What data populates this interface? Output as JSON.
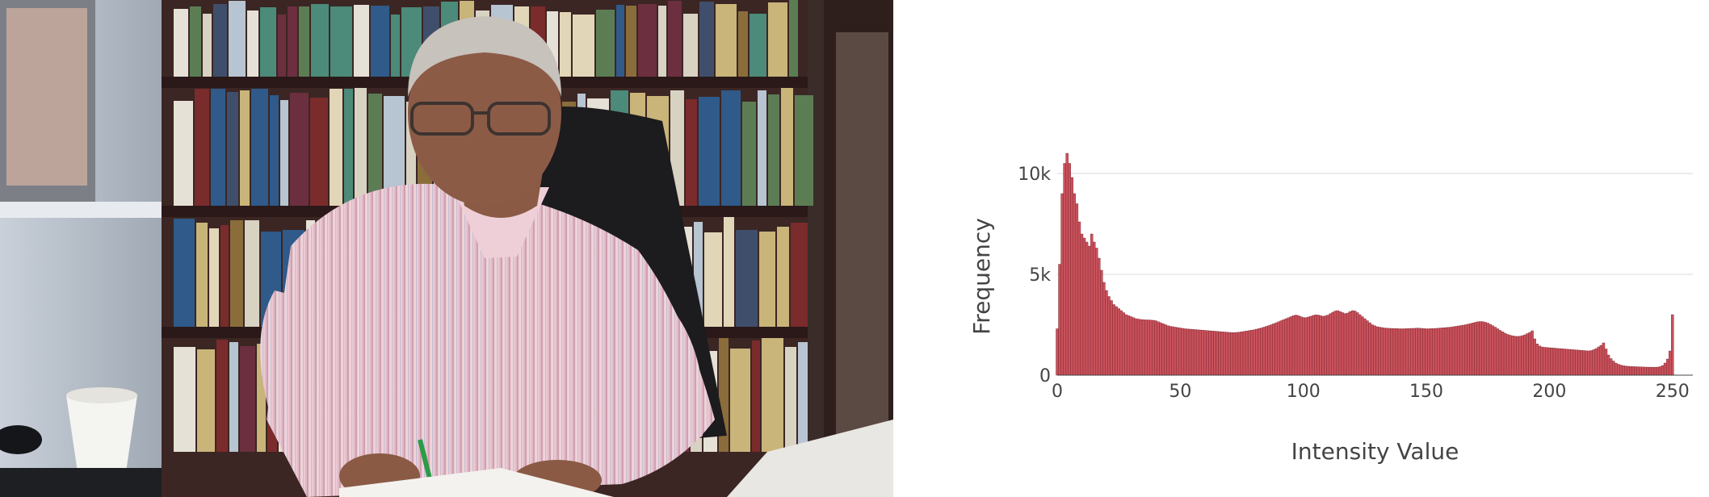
{
  "photo": {
    "subject": "man-at-desk-portrait"
  },
  "chart_data": {
    "type": "bar",
    "xlabel": "Intensity Value",
    "ylabel": "Frequency",
    "xlim": [
      0,
      255
    ],
    "ylim": [
      0,
      11000
    ],
    "x_ticks": [
      {
        "value": 0,
        "label": "0"
      },
      {
        "value": 50,
        "label": "50"
      },
      {
        "value": 100,
        "label": "100"
      },
      {
        "value": 150,
        "label": "150"
      },
      {
        "value": 200,
        "label": "200"
      },
      {
        "value": 250,
        "label": "250"
      }
    ],
    "y_ticks": [
      {
        "value": 0,
        "label": "0"
      },
      {
        "value": 5000,
        "label": "5k"
      },
      {
        "value": 10000,
        "label": "10k"
      }
    ],
    "grid": true,
    "bar_color": "#c8525c",
    "bar_edge_color": "#7a1f29",
    "values": [
      2300,
      5500,
      9000,
      10500,
      11000,
      10500,
      9800,
      9000,
      8500,
      7600,
      7000,
      6800,
      6600,
      6400,
      7000,
      6600,
      6300,
      5800,
      5200,
      4600,
      4200,
      3900,
      3700,
      3500,
      3400,
      3300,
      3200,
      3100,
      3000,
      2950,
      2900,
      2850,
      2800,
      2780,
      2760,
      2750,
      2740,
      2740,
      2730,
      2720,
      2700,
      2650,
      2600,
      2550,
      2500,
      2450,
      2420,
      2400,
      2380,
      2360,
      2340,
      2320,
      2300,
      2290,
      2280,
      2270,
      2260,
      2250,
      2240,
      2230,
      2220,
      2210,
      2200,
      2190,
      2180,
      2170,
      2160,
      2150,
      2140,
      2130,
      2120,
      2110,
      2110,
      2120,
      2130,
      2150,
      2170,
      2190,
      2210,
      2230,
      2250,
      2280,
      2310,
      2340,
      2380,
      2420,
      2460,
      2500,
      2550,
      2600,
      2650,
      2700,
      2750,
      2800,
      2850,
      2900,
      2950,
      2980,
      2950,
      2900,
      2860,
      2850,
      2880,
      2920,
      2960,
      2990,
      2980,
      2950,
      2920,
      2940,
      2980,
      3050,
      3120,
      3180,
      3200,
      3150,
      3100,
      3050,
      3080,
      3150,
      3200,
      3180,
      3100,
      3000,
      2900,
      2800,
      2700,
      2600,
      2500,
      2450,
      2400,
      2380,
      2360,
      2340,
      2330,
      2320,
      2320,
      2310,
      2310,
      2300,
      2300,
      2300,
      2310,
      2310,
      2320,
      2320,
      2330,
      2330,
      2320,
      2310,
      2300,
      2300,
      2310,
      2310,
      2320,
      2330,
      2340,
      2350,
      2360,
      2370,
      2380,
      2400,
      2420,
      2440,
      2460,
      2480,
      2500,
      2530,
      2560,
      2590,
      2620,
      2650,
      2660,
      2650,
      2620,
      2580,
      2520,
      2450,
      2380,
      2300,
      2220,
      2150,
      2080,
      2020,
      1980,
      1950,
      1930,
      1920,
      1930,
      1960,
      2000,
      2060,
      2120,
      2200,
      1800,
      1550,
      1450,
      1400,
      1380,
      1370,
      1360,
      1350,
      1340,
      1330,
      1320,
      1310,
      1300,
      1290,
      1280,
      1270,
      1260,
      1250,
      1240,
      1230,
      1220,
      1210,
      1200,
      1220,
      1260,
      1320,
      1400,
      1480,
      1600,
      1300,
      1000,
      820,
      700,
      600,
      540,
      500,
      470,
      450,
      440,
      430,
      425,
      420,
      415,
      410,
      405,
      400,
      398,
      396,
      395,
      395,
      400,
      420,
      480,
      600,
      800,
      1200,
      3000
    ]
  }
}
